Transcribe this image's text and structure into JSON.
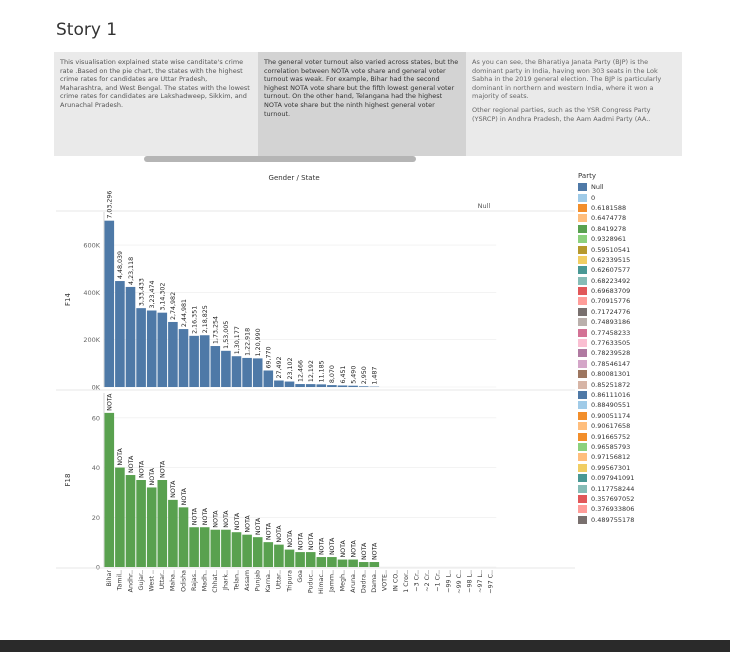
{
  "story": {
    "title": "Story 1",
    "captions": [
      {
        "paragraphs": [
          "This visualisation explained state wise canditate's crime rate .Based on the pie chart, the states with the highest crime rates for candidates are Uttar Pradesh, Maharashtra, and West Bengal. The states with the lowest crime rates for candidates are Lakshadweep, Sikkim, and Arunachal Pradesh."
        ]
      },
      {
        "paragraphs": [
          "The general voter turnout also varied across states, but the correlation between NOTA vote share and general voter turnout was weak. For example, Bihar had the second highest NOTA vote share but the fifth lowest general voter turnout. On the other hand, Telangana had the highest NOTA vote share but the ninth highest general voter turnout."
        ]
      },
      {
        "paragraphs": [
          "As you can see, the Bharatiya Janata Party (BJP) is the dominant party in India, having won 303 seats in the Lok Sabha in the 2019 general election. The BJP is particularly dominant in northern and western India, where it won a majority of seats.",
          "Other regional parties, such as the YSR Congress Party (YSRCP) in Andhra Pradesh, the Aam Aadmi Party (AA.."
        ]
      }
    ]
  },
  "chart_data": {
    "type": "bar",
    "title": "Gender / State",
    "null_label": "Null",
    "categories": [
      "Bihar",
      "Tamil..",
      "Andhr..",
      "Gujar..",
      "West ..",
      "Uttar..",
      "Maha..",
      "Odisha",
      "Rajas..",
      "Madh..",
      "Chhat..",
      "Jhark..",
      "Telan..",
      "Assam",
      "Punjab",
      "Karna..",
      "Uttar..",
      "Tripura",
      "Goa",
      "Puduc..",
      "Himac..",
      "Jamm..",
      "Megh..",
      "Aruna..",
      "Dadra..",
      "Dama..",
      "VOTE..",
      "IN CO..",
      "1 Cror..",
      "~3 Cr..",
      "~2 Cr..",
      "~1 Cr..",
      "~99 L..",
      "~99 C..",
      "~98 L..",
      "~97 L..",
      "~97 C.."
    ],
    "panels": [
      {
        "row_label": "F14",
        "color": "#4e79a7",
        "yticks": [
          0,
          200000,
          400000,
          600000
        ],
        "ytick_labels": [
          "0K",
          "200K",
          "400K",
          "600K"
        ],
        "ylim": [
          0,
          740000
        ],
        "values": [
          703296,
          448039,
          423118,
          333433,
          323474,
          314302,
          274982,
          244981,
          216351,
          218825,
          173254,
          153005,
          130177,
          122918,
          120990,
          69770,
          27492,
          23102,
          12466,
          12192,
          11185,
          8070,
          6451,
          5490,
          2950,
          1487,
          null,
          null,
          null,
          null,
          null,
          null,
          null,
          null,
          null,
          null,
          null
        ],
        "labels": [
          "7,03,296",
          "4,48,039",
          "4,23,118",
          "3,33,433",
          "3,23,474",
          "3,14,302",
          "2,74,982",
          "2,44,981",
          "2,16,351",
          "2,18,825",
          "1,73,254",
          "1,53,005",
          "1,30,177",
          "1,22,918",
          "1,20,990",
          "69,770",
          "27,492",
          "23,102",
          "12,466",
          "12,192",
          "11,185",
          "8,070",
          "6,451",
          "5,490",
          "2,950",
          "1,487",
          null,
          null,
          null,
          null,
          null,
          null,
          null,
          null,
          null,
          null,
          null
        ]
      },
      {
        "row_label": "F18",
        "color": "#59a14f",
        "yticks": [
          0,
          20,
          40,
          60
        ],
        "ytick_labels": [
          "0",
          "20",
          "40",
          "60"
        ],
        "ylim": [
          0,
          70
        ],
        "values": [
          62,
          40,
          37,
          35,
          32,
          35,
          27,
          24,
          16,
          16,
          15,
          15,
          14,
          13,
          12,
          10,
          9,
          7,
          6,
          6,
          4,
          4,
          3,
          3,
          2,
          2,
          null,
          null,
          null,
          null,
          null,
          null,
          null,
          null,
          null,
          null,
          null
        ],
        "labels": [
          "NOTA",
          "NOTA",
          "NOTA",
          "NOTA",
          "NOTA",
          "NOTA",
          "NOTA",
          "NOTA",
          "NOTA",
          "NOTA",
          "NOTA",
          "NOTA",
          "NOTA",
          "NOTA",
          "NOTA",
          "NOTA",
          "NOTA",
          "NOTA",
          "NOTA",
          "NOTA",
          "NOTA",
          "NOTA",
          "NOTA",
          "NOTA",
          "NOTA",
          "NOTA",
          null,
          null,
          null,
          null,
          null,
          null,
          null,
          null,
          null,
          null,
          null
        ]
      }
    ]
  },
  "legend": {
    "title": "Party",
    "items": [
      {
        "label": "Null",
        "color": "#4e79a7"
      },
      {
        "label": "0",
        "color": "#a0cbe8"
      },
      {
        "label": "0.6181588",
        "color": "#f28e2b"
      },
      {
        "label": "0.6474778",
        "color": "#ffbe7d"
      },
      {
        "label": "0.8419278",
        "color": "#59a14f"
      },
      {
        "label": "0.9328961",
        "color": "#8cd17d"
      },
      {
        "label": "0.59510541",
        "color": "#b6992d"
      },
      {
        "label": "0.62339515",
        "color": "#f1ce63"
      },
      {
        "label": "0.62607577",
        "color": "#499894"
      },
      {
        "label": "0.68223492",
        "color": "#86bcb6"
      },
      {
        "label": "0.69683709",
        "color": "#e15759"
      },
      {
        "label": "0.70915776",
        "color": "#ff9d9a"
      },
      {
        "label": "0.71724776",
        "color": "#79706e"
      },
      {
        "label": "0.74893186",
        "color": "#bab0ac"
      },
      {
        "label": "0.77458233",
        "color": "#d37295"
      },
      {
        "label": "0.77633505",
        "color": "#fabfd2"
      },
      {
        "label": "0.78239528",
        "color": "#b07aa1"
      },
      {
        "label": "0.78546147",
        "color": "#d4a6c8"
      },
      {
        "label": "0.80081301",
        "color": "#9d7660"
      },
      {
        "label": "0.85251872",
        "color": "#d7b5a6"
      },
      {
        "label": "0.86111016",
        "color": "#4e79a7"
      },
      {
        "label": "0.88490551",
        "color": "#a0cbe8"
      },
      {
        "label": "0.90051174",
        "color": "#f28e2b"
      },
      {
        "label": "0.90617658",
        "color": "#ffbe7d"
      },
      {
        "label": "0.91665752",
        "color": "#f28e2b"
      },
      {
        "label": "0.96585793",
        "color": "#8cd17d"
      },
      {
        "label": "0.97156812",
        "color": "#ffbe7d"
      },
      {
        "label": "0.99567301",
        "color": "#f1ce63"
      },
      {
        "label": "0.097941091",
        "color": "#499894"
      },
      {
        "label": "0.117758244",
        "color": "#86bcb6"
      },
      {
        "label": "0.357697052",
        "color": "#e15759"
      },
      {
        "label": "0.376933806",
        "color": "#ff9d9a"
      },
      {
        "label": "0.489755178",
        "color": "#79706e"
      }
    ]
  }
}
